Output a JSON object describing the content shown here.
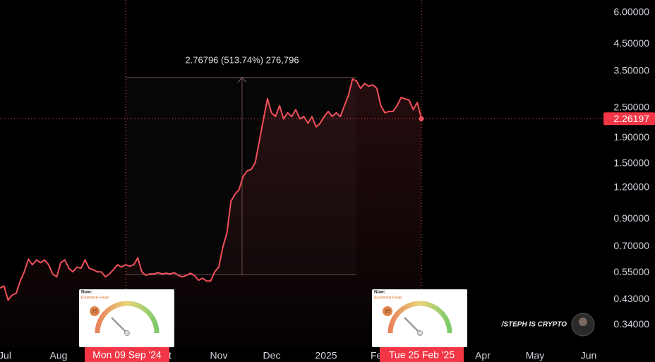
{
  "chart_data": {
    "type": "line",
    "log_scale": true,
    "ylim": [
      0.277,
      6.74
    ],
    "yticks": [
      {
        "value": 6,
        "label": "6.00000"
      },
      {
        "value": 4.5,
        "label": "4.50000"
      },
      {
        "value": 3.5,
        "label": "3.50000"
      },
      {
        "value": 2.5,
        "label": "2.50000"
      },
      {
        "value": 1.9,
        "label": "1.90000"
      },
      {
        "value": 1.5,
        "label": "1.50000"
      },
      {
        "value": 1.2,
        "label": "1.20000"
      },
      {
        "value": 0.9,
        "label": "0.90000"
      },
      {
        "value": 0.7,
        "label": "0.70000"
      },
      {
        "value": 0.55,
        "label": "0.55000"
      },
      {
        "value": 0.43,
        "label": "0.43000"
      },
      {
        "value": 0.34,
        "label": "0.34000"
      }
    ],
    "xtick_labels": [
      "Jul",
      "Aug",
      "Oct",
      "Nov",
      "Dec",
      "2025",
      "Feb",
      "Apr",
      "May",
      "Jun"
    ],
    "series": [
      {
        "color": "#f0505a",
        "values": [
          0.477,
          0.486,
          0.427,
          0.447,
          0.455,
          0.509,
          0.554,
          0.622,
          0.591,
          0.618,
          0.602,
          0.618,
          0.591,
          0.543,
          0.529,
          0.602,
          0.618,
          0.572,
          0.554,
          0.579,
          0.572,
          0.618,
          0.572,
          0.565,
          0.554,
          0.554,
          0.529,
          0.543,
          0.565,
          0.591,
          0.579,
          0.591,
          0.583,
          0.591,
          0.63,
          0.554,
          0.536,
          0.543,
          0.543,
          0.55,
          0.543,
          0.547,
          0.543,
          0.55,
          0.536,
          0.529,
          0.536,
          0.547,
          0.536,
          0.512,
          0.522,
          0.509,
          0.509,
          0.554,
          0.579,
          0.695,
          0.791,
          1.06,
          1.13,
          1.18,
          1.33,
          1.4,
          1.42,
          1.51,
          1.84,
          2.24,
          2.72,
          2.39,
          2.31,
          2.55,
          2.26,
          2.39,
          2.31,
          2.46,
          2.26,
          2.31,
          2.17,
          2.31,
          2.1,
          2.17,
          2.31,
          2.42,
          2.31,
          2.39,
          2.31,
          2.55,
          2.81,
          3.26,
          3.2,
          2.99,
          3.13,
          3.05,
          3.09,
          2.99,
          2.55,
          2.39,
          2.42,
          2.42,
          2.55,
          2.75,
          2.72,
          2.68,
          2.46,
          2.63,
          2.26197
        ]
      }
    ],
    "measure": {
      "low": 0.5388,
      "high": 3.30676,
      "label": "2.76796 (513.74%) 276,796"
    },
    "crosshair_labels": [
      "Mon 09 Sep '24",
      "Tue 25 Feb '25"
    ],
    "gauges": [
      {
        "heading": "Now:",
        "mood": "Extreme Fear",
        "value": 25,
        "range": [
          0,
          100
        ]
      },
      {
        "heading": "Now:",
        "mood": "Extreme Fear",
        "value": 25,
        "range": [
          0,
          100
        ]
      }
    ],
    "watermark": "/STEPH IS CRYPTO"
  }
}
